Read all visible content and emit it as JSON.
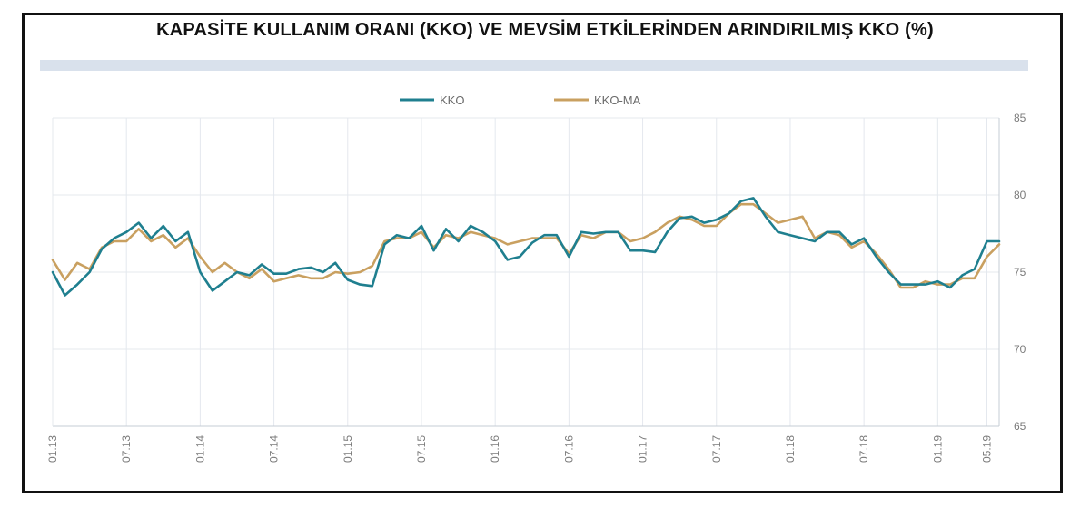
{
  "chart_data": {
    "type": "line",
    "title": "KAPASİTE KULLANIM ORANI (KKO) VE MEVSİM ETKİLERİNDEN ARINDIRILMIŞ KKO (%)",
    "xlabel": "",
    "ylabel": "",
    "ylim": [
      65,
      85
    ],
    "y_ticks": [
      "65",
      "70",
      "75",
      "80",
      "85"
    ],
    "x_tick_labels": [
      "01.13",
      "07.13",
      "01.14",
      "07.14",
      "01.15",
      "07.15",
      "01.16",
      "07.16",
      "01.17",
      "07.17",
      "01.18",
      "07.18",
      "01.19",
      "05.19"
    ],
    "x_tick_index": [
      0,
      6,
      12,
      18,
      24,
      30,
      36,
      42,
      48,
      54,
      60,
      66,
      72,
      76
    ],
    "legend": {
      "position": "top"
    },
    "grid": true,
    "series": [
      {
        "name": "KKO",
        "color": "#1f7f8f",
        "values": [
          75.0,
          73.5,
          74.2,
          75.0,
          76.5,
          77.2,
          77.6,
          78.2,
          77.2,
          78.0,
          77.0,
          77.6,
          75.0,
          73.8,
          74.4,
          75.0,
          74.8,
          75.5,
          74.9,
          74.9,
          75.2,
          75.3,
          75.0,
          75.6,
          74.5,
          74.2,
          74.1,
          76.8,
          77.4,
          77.2,
          78.0,
          76.4,
          77.8,
          77.0,
          78.0,
          77.6,
          77.0,
          75.8,
          76.0,
          76.9,
          77.4,
          77.4,
          76.0,
          77.6,
          77.5,
          77.6,
          77.6,
          76.4,
          76.4,
          76.3,
          77.6,
          78.5,
          78.6,
          78.2,
          78.4,
          78.8,
          79.6,
          79.8,
          78.6,
          77.6,
          77.4,
          77.2,
          77.0,
          77.6,
          77.6,
          76.8,
          77.2,
          76.0,
          75.0,
          74.2,
          74.2,
          74.2,
          74.4,
          74.0,
          74.8,
          75.2,
          77.0,
          77.0
        ]
      },
      {
        "name": "KKO-MA",
        "color": "#c9a060",
        "values": [
          75.8,
          74.5,
          75.6,
          75.2,
          76.6,
          77.0,
          77.0,
          77.8,
          77.0,
          77.4,
          76.6,
          77.2,
          76.0,
          75.0,
          75.6,
          75.0,
          74.6,
          75.2,
          74.4,
          74.6,
          74.8,
          74.6,
          74.6,
          75.0,
          74.9,
          75.0,
          75.4,
          77.0,
          77.2,
          77.2,
          77.6,
          76.6,
          77.4,
          77.2,
          77.6,
          77.4,
          77.2,
          76.8,
          77.0,
          77.2,
          77.2,
          77.2,
          76.2,
          77.4,
          77.2,
          77.6,
          77.6,
          77.0,
          77.2,
          77.6,
          78.2,
          78.6,
          78.4,
          78.0,
          78.0,
          78.8,
          79.4,
          79.4,
          78.8,
          78.2,
          78.4,
          78.6,
          77.2,
          77.6,
          77.4,
          76.6,
          77.0,
          76.2,
          75.2,
          74.0,
          74.0,
          74.4,
          74.2,
          74.2,
          74.6,
          74.6,
          76.0,
          76.8
        ]
      }
    ]
  }
}
